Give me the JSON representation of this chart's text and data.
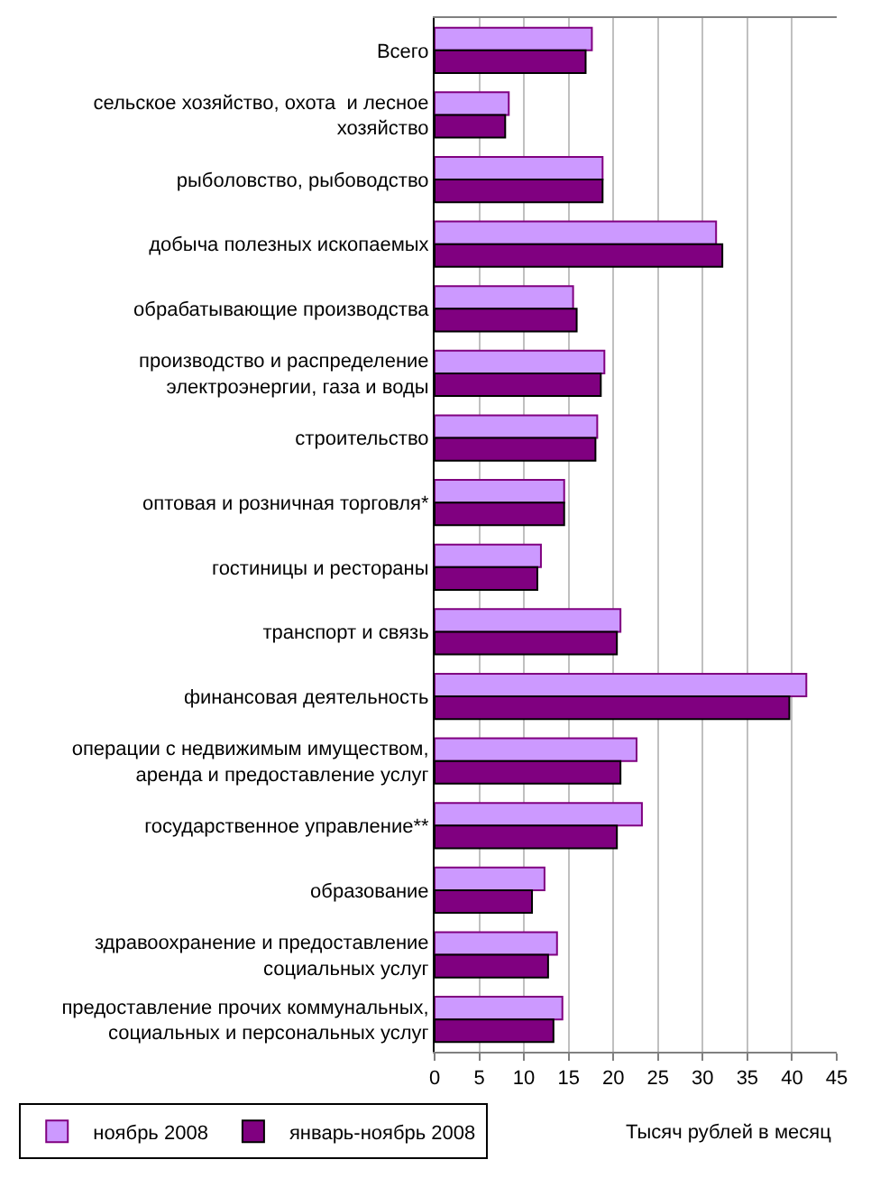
{
  "chart_data": {
    "type": "bar",
    "orientation": "horizontal",
    "xlabel": "Тысяч рублей в месяц",
    "categories": [
      "Всего",
      "сельское хозяйство, охота  и лесное\nхозяйство",
      "рыболовство, рыбоводство",
      "добыча полезных ископаемых",
      "обрабатывающие производства",
      "производство и распределение\nэлектроэнергии, газа и воды",
      "строительство",
      "оптовая и розничная торговля*",
      "гостиницы и рестораны",
      "транспорт и связь",
      "финансовая деятельность",
      "операции с недвижимым имуществом,\nаренда и предоставление услуг",
      "государственное управление**",
      "образование",
      "здравоохранение и предоставление\nсоциальных услуг",
      "предоставление прочих коммунальных,\nсоциальных и персональных услуг"
    ],
    "series": [
      {
        "name": "ноябрь 2008",
        "color": "#cc99ff",
        "values": [
          17.6,
          8.3,
          18.8,
          31.5,
          15.5,
          19.0,
          18.2,
          14.5,
          11.9,
          20.8,
          41.6,
          22.6,
          23.2,
          12.3,
          13.7,
          14.3
        ]
      },
      {
        "name": "январь-ноябрь 2008",
        "color": "#800080",
        "values": [
          16.9,
          7.9,
          18.8,
          32.2,
          15.9,
          18.6,
          18.0,
          14.5,
          11.5,
          20.4,
          39.7,
          20.8,
          20.4,
          10.9,
          12.7,
          13.3
        ]
      }
    ],
    "xlim": [
      0,
      45
    ],
    "xticks": [
      0,
      5,
      10,
      15,
      20,
      25,
      30,
      35,
      40,
      45
    ],
    "grid": "x",
    "legend": "bottom left"
  }
}
